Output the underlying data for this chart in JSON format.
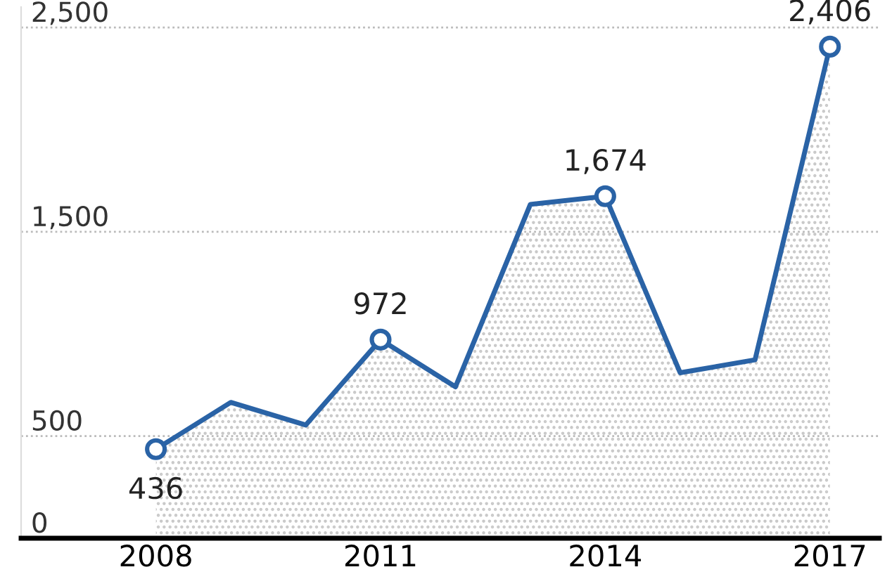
{
  "chart_data": {
    "type": "area",
    "x": [
      2008,
      2009,
      2010,
      2011,
      2012,
      2013,
      2014,
      2015,
      2016,
      2017
    ],
    "values": [
      436,
      665,
      554,
      972,
      741,
      1634,
      1674,
      810,
      873,
      2406
    ],
    "value_labels": [
      "436",
      null,
      null,
      "972",
      null,
      null,
      "1,674",
      null,
      null,
      "2,406"
    ],
    "color": "#2a63a6",
    "xlim": [
      2006.2,
      2017.66
    ],
    "xticks": [
      2008,
      2011,
      2014,
      2017
    ],
    "ylim": [
      0,
      2600
    ],
    "yticks": [
      0,
      500,
      {
        "value": 1500,
        "label": "1,500"
      },
      {
        "value": 2500,
        "label": "2,500"
      }
    ],
    "grid": "y"
  }
}
